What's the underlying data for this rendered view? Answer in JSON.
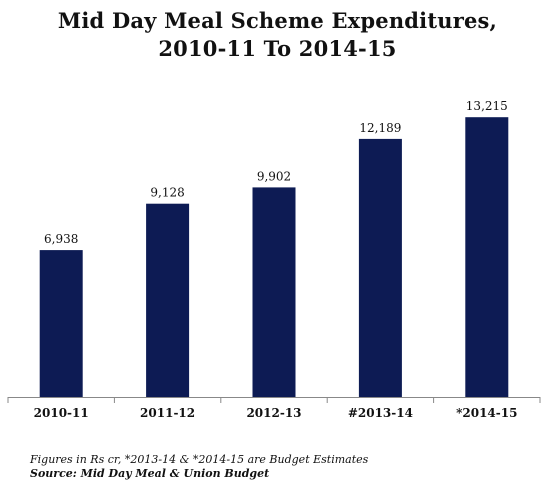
{
  "chart_data": {
    "type": "bar",
    "title_line1": "Mid Day Meal Scheme Expenditures,",
    "title_line2": "2010-11 To 2014-15",
    "categories": [
      "2010-11",
      "2011-12",
      "2012-13",
      "#2013-14",
      "*2014-15"
    ],
    "values": [
      6938,
      9128,
      9902,
      12189,
      13215
    ],
    "value_labels": [
      "6,938",
      "9,128",
      "9,902",
      "12,189",
      "13,215"
    ],
    "ylim": [
      0,
      14500
    ],
    "bar_color": "#0d1b54",
    "grid": false,
    "legend": "none"
  },
  "footnotes": {
    "line1": "Figures in Rs cr, *2013-14 & *2014-15 are Budget Estimates",
    "line2": "Source: Mid Day Meal & Union Budget"
  }
}
